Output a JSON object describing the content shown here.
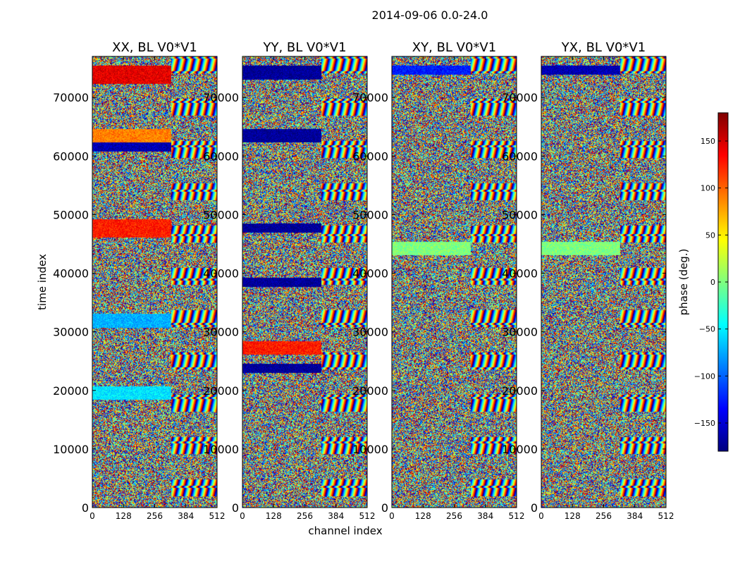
{
  "chart_data": {
    "type": "heatmap",
    "suptitle": "2014-09-06 0.0-24.0",
    "xlabel": "channel index",
    "ylabel": "time index",
    "xlim": [
      0,
      512
    ],
    "ylim": [
      0,
      77000
    ],
    "xticks": [
      0,
      128,
      256,
      384,
      512
    ],
    "yticks": [
      0,
      10000,
      20000,
      30000,
      40000,
      50000,
      60000,
      70000
    ],
    "panels": [
      {
        "title": "XX, BL V0*V1",
        "key": "xx"
      },
      {
        "title": "YY, BL V0*V1",
        "key": "yy"
      },
      {
        "title": "XY, BL V0*V1",
        "key": "xy"
      },
      {
        "title": "YX, BL V0*V1",
        "key": "yx"
      }
    ],
    "colorbar": {
      "label": "phase (deg.)",
      "range": [
        -180,
        180
      ],
      "ticks": [
        -150,
        -100,
        -50,
        0,
        50,
        100,
        150
      ],
      "colormap": "jet"
    }
  },
  "colors": {
    "jet_stops": [
      "#00007f",
      "#0000ff",
      "#007fff",
      "#00ffff",
      "#7fff7f",
      "#ffff00",
      "#ff7f00",
      "#ff0000",
      "#7f0000"
    ]
  }
}
